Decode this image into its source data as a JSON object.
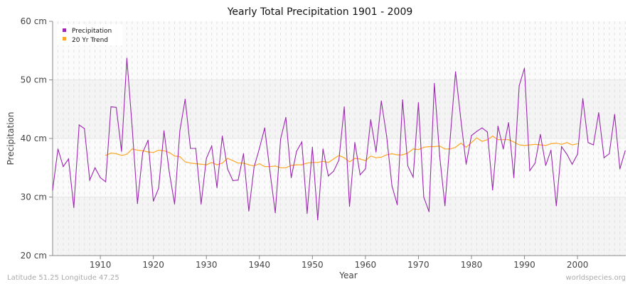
{
  "chart_data": {
    "type": "line",
    "title": "Yearly Total Precipitation 1901 - 2009",
    "xlabel": "Year",
    "ylabel": "Precipitation",
    "xlim": [
      1901,
      2009
    ],
    "ylim": [
      20,
      60
    ],
    "x_ticks": [
      "1910",
      "1920",
      "1930",
      "1940",
      "1950",
      "1960",
      "1970",
      "1980",
      "1990",
      "2000"
    ],
    "y_ticks": [
      "20 cm",
      "30 cm",
      "40 cm",
      "50 cm",
      "60 cm"
    ],
    "grid": true,
    "legend_position": "top-left",
    "colors": {
      "precipitation": "#9c27b0",
      "trend": "#ffa726"
    },
    "series": [
      {
        "name": "Precipitation",
        "start_year": 1901,
        "values": [
          31.2,
          38.2,
          35.2,
          36.5,
          28.2,
          42.3,
          41.7,
          32.9,
          35.0,
          33.3,
          32.6,
          45.4,
          45.3,
          37.8,
          53.7,
          42.0,
          28.9,
          37.6,
          39.7,
          29.3,
          31.5,
          41.3,
          34.3,
          28.8,
          41.3,
          46.7,
          38.3,
          38.3,
          28.8,
          36.6,
          38.7,
          31.6,
          40.4,
          34.8,
          32.8,
          32.9,
          37.4,
          27.6,
          35.1,
          38.3,
          41.8,
          34.3,
          27.3,
          39.9,
          43.6,
          33.3,
          37.8,
          39.4,
          27.2,
          38.5,
          26.1,
          38.2,
          33.6,
          34.4,
          36.3,
          45.4,
          28.4,
          39.3,
          33.8,
          34.8,
          43.2,
          37.7,
          46.4,
          40.4,
          31.9,
          28.7,
          46.6,
          35.3,
          33.4,
          46.1,
          30.0,
          27.5,
          49.4,
          37.0,
          28.5,
          40.2,
          51.4,
          43.2,
          35.6,
          40.5,
          41.2,
          41.8,
          41.1,
          31.2,
          42.1,
          38.2,
          42.7,
          33.3,
          49.0,
          52.0,
          34.5,
          35.8,
          40.7,
          35.4,
          38.0,
          28.5,
          38.6,
          37.3,
          35.6,
          37.3,
          46.8,
          39.3,
          38.9,
          44.4,
          36.7,
          37.4,
          44.1,
          34.8,
          37.9
        ]
      },
      {
        "name": "20 Yr Trend",
        "start_year": 1911,
        "values": [
          37.1,
          37.5,
          37.4,
          37.1,
          37.3,
          38.2,
          38.0,
          37.9,
          37.7,
          37.6,
          38.0,
          37.9,
          37.6,
          37.0,
          36.9,
          36.0,
          35.8,
          35.7,
          35.6,
          35.5,
          35.9,
          35.5,
          35.8,
          36.6,
          36.2,
          35.8,
          35.8,
          35.5,
          35.3,
          35.7,
          35.2,
          35.2,
          35.3,
          35.0,
          35.0,
          35.4,
          35.5,
          35.5,
          35.8,
          35.9,
          35.9,
          36.1,
          35.9,
          36.5,
          37.1,
          36.7,
          36.0,
          36.6,
          36.5,
          36.2,
          37.0,
          36.7,
          36.8,
          37.2,
          37.4,
          37.2,
          37.2,
          37.5,
          38.2,
          38.1,
          38.5,
          38.6,
          38.6,
          38.7,
          38.2,
          38.2,
          38.5,
          39.2,
          38.5,
          39.3,
          40.1,
          39.5,
          39.8,
          40.4,
          39.8,
          39.8,
          39.8,
          39.4,
          38.9,
          38.8,
          38.9,
          39.0,
          38.9,
          38.8,
          39.1,
          39.2,
          39.0,
          39.3,
          38.9,
          39.1
        ]
      }
    ]
  },
  "footer": {
    "location": "Latitude 51.25 Longitude 47.25",
    "source": "worldspecies.org"
  }
}
